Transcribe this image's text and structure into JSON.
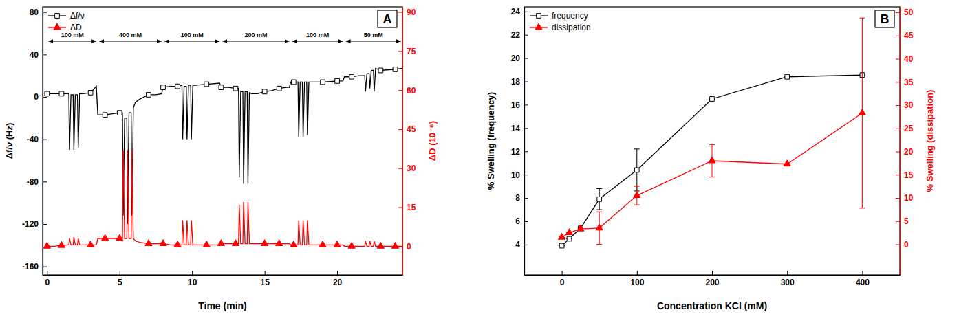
{
  "chart_data": [
    {
      "type": "line",
      "panel_label": "A",
      "x_label": "Time (min)",
      "y_label": "Δf/ν (Hz)",
      "y2_label": "ΔD (10⁻⁶)",
      "x": [
        0,
        0.5,
        1,
        1.4,
        1.5,
        1.55,
        1.65,
        1.8,
        1.85,
        1.95,
        2.1,
        2.15,
        2.25,
        2.5,
        3,
        3.4,
        3.5,
        4,
        4.5,
        5,
        5.2,
        5.25,
        5.35,
        5.5,
        5.55,
        5.65,
        5.8,
        5.85,
        5.95,
        6.1,
        6.4,
        7,
        7.5,
        7.9,
        8,
        8.5,
        9,
        9.3,
        9.35,
        9.45,
        9.6,
        9.65,
        9.75,
        9.9,
        9.95,
        10.05,
        10.2,
        11,
        11.9,
        12,
        12.5,
        13,
        13.2,
        13.25,
        13.35,
        13.5,
        13.55,
        13.65,
        13.8,
        13.85,
        13.95,
        14.1,
        14.5,
        15,
        15.5,
        16,
        16.5,
        16.7,
        16.8,
        17,
        17.3,
        17.35,
        17.45,
        17.6,
        17.65,
        17.75,
        17.9,
        17.95,
        18.05,
        18.2,
        19,
        20,
        20.4,
        20.5,
        21,
        21.5,
        21.9,
        21.95,
        22.05,
        22.2,
        22.25,
        22.35,
        22.5,
        22.55,
        22.65,
        22.8,
        23,
        24,
        24.5
      ],
      "xlim": [
        -0.3,
        24.5
      ],
      "xticks": [
        0,
        5,
        10,
        15,
        20
      ],
      "ylim": [
        -168,
        85
      ],
      "yticks": [
        -160,
        -120,
        -80,
        -40,
        0,
        40,
        80
      ],
      "y2lim": [
        -11,
        92
      ],
      "y2ticks": [
        0,
        15,
        30,
        45,
        60,
        75,
        90
      ],
      "legend": "upper left",
      "series": [
        {
          "name": "Δf/ν",
          "color": "#000000",
          "marker": "square",
          "values": [
            3,
            3,
            3,
            3,
            3,
            -50,
            2,
            2,
            -50,
            2,
            2,
            -48,
            3,
            3,
            4,
            10,
            -17,
            -17,
            -16,
            -15,
            -15,
            -112,
            -20,
            -20,
            -120,
            -15,
            -15,
            -112,
            -10,
            -5,
            -2,
            2,
            2,
            3,
            9,
            10,
            10,
            11,
            -40,
            10,
            10,
            -40,
            11,
            11,
            -40,
            11,
            11,
            12,
            13,
            9,
            9,
            8,
            8,
            -76,
            5,
            5,
            -82,
            5,
            5,
            -82,
            4,
            3,
            3,
            5,
            6,
            8,
            9,
            9,
            14,
            14,
            14,
            -38,
            14,
            14,
            -38,
            14,
            14,
            -36,
            14,
            14,
            14,
            15,
            15,
            19,
            19,
            20,
            20,
            5,
            22,
            22,
            8,
            25,
            25,
            5,
            27,
            26,
            25,
            26,
            27
          ]
        },
        {
          "name": "ΔD",
          "color": "#ff0000",
          "marker": "triangle",
          "axis": "y2",
          "values": [
            0,
            0,
            0.3,
            0.5,
            0.5,
            3,
            0.5,
            0.5,
            3.5,
            0.5,
            0.5,
            3,
            0.5,
            0.5,
            0.5,
            0.5,
            3,
            3,
            3,
            3,
            3,
            37,
            3,
            3,
            37,
            3,
            3,
            37,
            3,
            2,
            1.5,
            1,
            1,
            1,
            1,
            0.5,
            0.5,
            0.5,
            10,
            0.5,
            0.5,
            10,
            0.5,
            0.5,
            10,
            0.5,
            0.5,
            0.5,
            0.5,
            1,
            1,
            1,
            1,
            16,
            1,
            1,
            17,
            1,
            1,
            17,
            1,
            1,
            1,
            1,
            1,
            1,
            1,
            1,
            0.5,
            0.5,
            0.5,
            10,
            0.5,
            0.5,
            10,
            0.5,
            0.5,
            10,
            0.5,
            0.5,
            0.5,
            0.5,
            0.5,
            0,
            0,
            0,
            0,
            2,
            0,
            0,
            2,
            0,
            0,
            2,
            0,
            0,
            0,
            0,
            0
          ]
        }
      ],
      "annotations": [
        {
          "text": "100 mM",
          "start": 0,
          "end": 3.5
        },
        {
          "text": "400 mM",
          "start": 3.5,
          "end": 8
        },
        {
          "text": "100 mM",
          "start": 8,
          "end": 12
        },
        {
          "text": "200 mM",
          "start": 12,
          "end": 16.8
        },
        {
          "text": "100 mM",
          "start": 16.8,
          "end": 20.5
        },
        {
          "text": "50 mM",
          "start": 20.5,
          "end": 24.5
        }
      ]
    },
    {
      "type": "line",
      "panel_label": "B",
      "x_label": "Concentration KCl (mM)",
      "y_label": "% Swelling (frequency)",
      "y2_label": "% Swelling (dissipation)",
      "x": [
        0,
        10,
        25,
        50,
        100,
        200,
        300,
        400
      ],
      "xlim": [
        -50,
        450
      ],
      "xticks": [
        0,
        100,
        200,
        300,
        400
      ],
      "ylim": [
        1.4,
        24.4
      ],
      "yticks": [
        4,
        6,
        8,
        10,
        12,
        14,
        16,
        18,
        20,
        22,
        24
      ],
      "y2lim": [
        -6.6,
        51.2
      ],
      "y2ticks": [
        0,
        5,
        10,
        15,
        20,
        25,
        30,
        35,
        40,
        45,
        50
      ],
      "legend": "upper left",
      "series": [
        {
          "name": "frequency",
          "color": "#000000",
          "marker": "square",
          "values": [
            3.9,
            4.5,
            5.4,
            7.9,
            10.4,
            16.5,
            18.4,
            18.55
          ],
          "errors": [
            0,
            0,
            0,
            0.9,
            1.8,
            0,
            0,
            0
          ]
        },
        {
          "name": "dissipation",
          "color": "#ff0000",
          "marker": "triangle",
          "axis": "y2",
          "values": [
            1.5,
            2.5,
            3.3,
            3.5,
            10.5,
            18,
            17.3,
            28.3
          ],
          "errors": [
            0,
            0,
            0,
            3.5,
            2,
            3.5,
            0,
            20.5
          ]
        }
      ]
    }
  ]
}
